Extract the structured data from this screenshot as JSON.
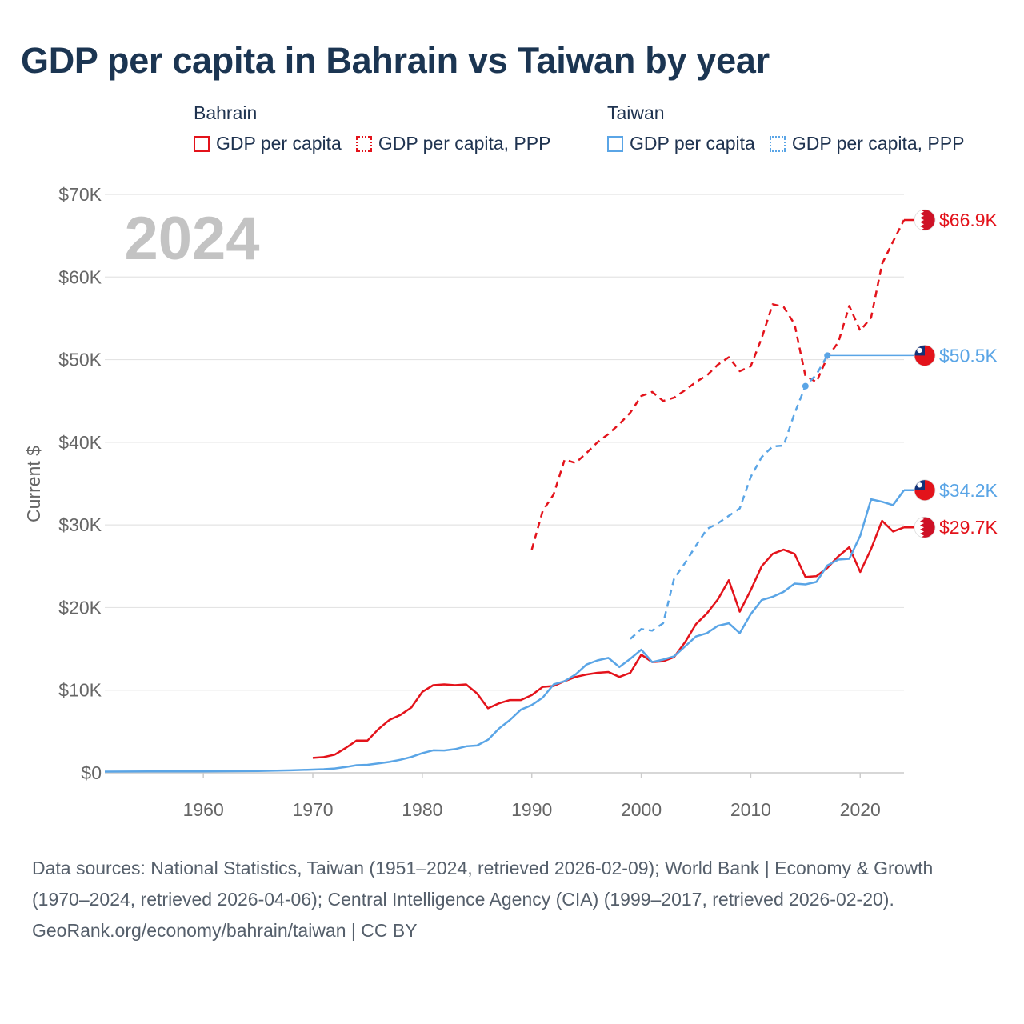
{
  "title": "GDP per capita in Bahrain vs Taiwan by year",
  "legend": {
    "groups": [
      {
        "country": "Bahrain",
        "color": "#e3131b",
        "items": [
          {
            "label": "GDP per capita",
            "style": "solid"
          },
          {
            "label": "GDP per capita, PPP",
            "style": "dotted"
          }
        ]
      },
      {
        "country": "Taiwan",
        "color": "#5aa5e6",
        "items": [
          {
            "label": "GDP per capita",
            "style": "solid"
          },
          {
            "label": "GDP per capita, PPP",
            "style": "dotted"
          }
        ]
      }
    ]
  },
  "year_watermark": "2024",
  "footer": {
    "sources": "Data sources: National Statistics, Taiwan (1951–2024, retrieved 2026-02-09); World Bank | Economy & Growth (1970–2024, retrieved 2026-04-06); Central Intelligence Agency (CIA) (1999–2017, retrieved 2026-02-20).",
    "credit": "GeoRank.org/economy/bahrain/taiwan | CC BY"
  },
  "chart_data": {
    "type": "line",
    "title": "GDP per capita in Bahrain vs Taiwan by year",
    "xlabel": "",
    "ylabel": "Current $",
    "xlim": [
      1951,
      2024
    ],
    "ylim": [
      0,
      70000
    ],
    "x_ticks": [
      1960,
      1970,
      1980,
      1990,
      2000,
      2010,
      2020
    ],
    "y_ticks": [
      0,
      10000,
      20000,
      30000,
      40000,
      50000,
      60000,
      70000
    ],
    "y_tick_labels": [
      "$0",
      "$10K",
      "$20K",
      "$30K",
      "$40K",
      "$50K",
      "$60K",
      "$70K"
    ],
    "grid": true,
    "series": [
      {
        "name": "Bahrain GDP per capita",
        "country": "Bahrain",
        "color": "#e3131b",
        "dash": "solid",
        "end_label": "$29.7K",
        "flag": "bahrain",
        "x": [
          1970,
          1971,
          1972,
          1973,
          1974,
          1975,
          1976,
          1977,
          1978,
          1979,
          1980,
          1981,
          1982,
          1983,
          1984,
          1985,
          1986,
          1987,
          1988,
          1989,
          1990,
          1991,
          1992,
          1993,
          1994,
          1995,
          1996,
          1997,
          1998,
          1999,
          2000,
          2001,
          2002,
          2003,
          2004,
          2005,
          2006,
          2007,
          2008,
          2009,
          2010,
          2011,
          2012,
          2013,
          2014,
          2015,
          2016,
          2017,
          2018,
          2019,
          2020,
          2021,
          2022,
          2023,
          2024
        ],
        "values": [
          1800,
          1900,
          2200,
          3000,
          3900,
          3900,
          5300,
          6400,
          7000,
          7900,
          9800,
          10600,
          10700,
          10600,
          10700,
          9600,
          7800,
          8400,
          8800,
          8800,
          9400,
          10400,
          10500,
          11100,
          11600,
          11900,
          12100,
          12200,
          11600,
          12100,
          14300,
          13400,
          13500,
          14000,
          15800,
          18000,
          19300,
          21000,
          23300,
          19500,
          22100,
          25000,
          26500,
          27000,
          26500,
          23700,
          23800,
          24800,
          26200,
          27300,
          24300,
          27100,
          30500,
          29200,
          29700
        ]
      },
      {
        "name": "Bahrain GDP per capita, PPP",
        "country": "Bahrain",
        "color": "#e3131b",
        "dash": "dashed",
        "end_label": "$66.9K",
        "flag": "bahrain",
        "x": [
          1990,
          1991,
          1992,
          1993,
          1994,
          1995,
          1996,
          1997,
          1998,
          1999,
          2000,
          2001,
          2002,
          2003,
          2004,
          2005,
          2006,
          2007,
          2008,
          2009,
          2010,
          2011,
          2012,
          2013,
          2014,
          2015,
          2016,
          2017,
          2018,
          2019,
          2020,
          2021,
          2022,
          2023,
          2024
        ],
        "values": [
          27000,
          31700,
          33700,
          37900,
          37500,
          38700,
          40000,
          41000,
          42200,
          43600,
          45600,
          46100,
          45000,
          45400,
          46300,
          47300,
          48100,
          49400,
          50300,
          48600,
          49200,
          52600,
          56700,
          56400,
          54300,
          48000,
          47300,
          50300,
          52100,
          56500,
          53500,
          55100,
          61600,
          64300,
          66900
        ]
      },
      {
        "name": "Taiwan GDP per capita",
        "country": "Taiwan",
        "color": "#5aa5e6",
        "dash": "solid",
        "end_label": "$34.2K",
        "flag": "taiwan",
        "x": [
          1951,
          1955,
          1960,
          1965,
          1968,
          1970,
          1971,
          1972,
          1973,
          1974,
          1975,
          1976,
          1977,
          1978,
          1979,
          1980,
          1981,
          1982,
          1983,
          1984,
          1985,
          1986,
          1987,
          1988,
          1989,
          1990,
          1991,
          1992,
          1993,
          1994,
          1995,
          1996,
          1997,
          1998,
          1999,
          2000,
          2001,
          2002,
          2003,
          2004,
          2005,
          2006,
          2007,
          2008,
          2009,
          2010,
          2011,
          2012,
          2013,
          2014,
          2015,
          2016,
          2017,
          2018,
          2019,
          2020,
          2021,
          2022,
          2023,
          2024
        ],
        "values": [
          150,
          160,
          160,
          220,
          300,
          390,
          440,
          520,
          700,
          920,
          970,
          1140,
          1320,
          1580,
          1920,
          2380,
          2720,
          2700,
          2870,
          3200,
          3300,
          4000,
          5350,
          6380,
          7630,
          8200,
          9100,
          10700,
          11100,
          11900,
          13100,
          13600,
          13900,
          12800,
          13800,
          14900,
          13400,
          13700,
          14100,
          15300,
          16500,
          16900,
          17800,
          18100,
          16900,
          19200,
          20900,
          21300,
          21900,
          22900,
          22800,
          23100,
          25100,
          25800,
          25900,
          28700,
          33100,
          32800,
          32400,
          34200
        ]
      },
      {
        "name": "Taiwan GDP per capita, PPP",
        "country": "Taiwan",
        "color": "#5aa5e6",
        "dash": "dashed",
        "end_label": "$50.5K",
        "flag": "taiwan",
        "x": [
          1999,
          2000,
          2001,
          2002,
          2003,
          2004,
          2005,
          2006,
          2007,
          2008,
          2009,
          2010,
          2011,
          2012,
          2013,
          2014,
          2015,
          2016,
          2017
        ],
        "values": [
          16200,
          17400,
          17200,
          18100,
          23500,
          25400,
          27500,
          29500,
          30200,
          31100,
          32000,
          35800,
          38200,
          39500,
          39600,
          43500,
          46800,
          48200,
          50500
        ],
        "markers": [
          {
            "x": 2015,
            "value": 46800
          },
          {
            "x": 2017,
            "value": 50500
          }
        ],
        "carry_to": 2024
      }
    ]
  }
}
